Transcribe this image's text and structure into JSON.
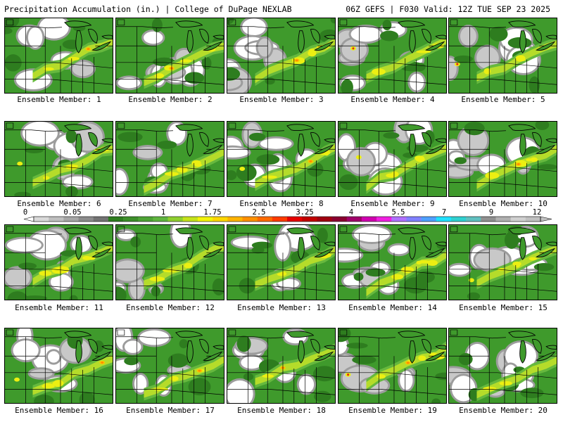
{
  "header": {
    "title_left": "Precipitation Accumulation (in.) | College of DuPage NEXLAB",
    "title_right": "06Z GEFS | F030 Valid: 12Z TUE SEP 23 2025"
  },
  "panels": [
    {
      "label": "Ensemble Member: 1"
    },
    {
      "label": "Ensemble Member: 2"
    },
    {
      "label": "Ensemble Member: 3"
    },
    {
      "label": "Ensemble Member: 4"
    },
    {
      "label": "Ensemble Member: 5"
    },
    {
      "label": "Ensemble Member: 6"
    },
    {
      "label": "Ensemble Member: 7"
    },
    {
      "label": "Ensemble Member: 8"
    },
    {
      "label": "Ensemble Member: 9"
    },
    {
      "label": "Ensemble Member: 10"
    },
    {
      "label": "Ensemble Member: 11"
    },
    {
      "label": "Ensemble Member: 12"
    },
    {
      "label": "Ensemble Member: 13"
    },
    {
      "label": "Ensemble Member: 14"
    },
    {
      "label": "Ensemble Member: 15"
    },
    {
      "label": "Ensemble Member: 16"
    },
    {
      "label": "Ensemble Member: 17"
    },
    {
      "label": "Ensemble Member: 18"
    },
    {
      "label": "Ensemble Member: 19"
    },
    {
      "label": "Ensemble Member: 20"
    }
  ],
  "colorbar": {
    "tick_labels": [
      "0",
      "0.05",
      "0.25",
      "1",
      "1.75",
      "2.5",
      "3.25",
      "4",
      "5.5",
      "7",
      "9",
      "12"
    ],
    "colors": [
      "#d9d9d9",
      "#bfbfbf",
      "#a6a6a6",
      "#8c8c8c",
      "#737373",
      "#2e7d1f",
      "#3d8f2a",
      "#4da335",
      "#5fb53f",
      "#8fcf2f",
      "#c5e21b",
      "#f2f20a",
      "#ffd700",
      "#ffb300",
      "#ff9000",
      "#ff6a00",
      "#ff3b00",
      "#e60000",
      "#c20000",
      "#a00010",
      "#8a0030",
      "#a0006a",
      "#d000b0",
      "#f020e0",
      "#b070ff",
      "#8080ff",
      "#4fa0ff",
      "#20e0ff",
      "#30d0d0",
      "#60c0c0",
      "#909090",
      "#b0b0b0",
      "#d0d0d0",
      "#c0c0c0"
    ]
  },
  "map_colors": {
    "background": "#ffffff",
    "trace": "#c8c8c8",
    "light": "#9c9c9c",
    "dark_gray": "#6e6e6e",
    "green_dark": "#2e7d1f",
    "green": "#3f9a2c",
    "green_light": "#66b83e",
    "yellow_green": "#b5dc2a",
    "yellow": "#ecef12",
    "gold": "#ffc400",
    "orange": "#ff8c00",
    "red": "#e52a1a",
    "border": "#000000"
  }
}
